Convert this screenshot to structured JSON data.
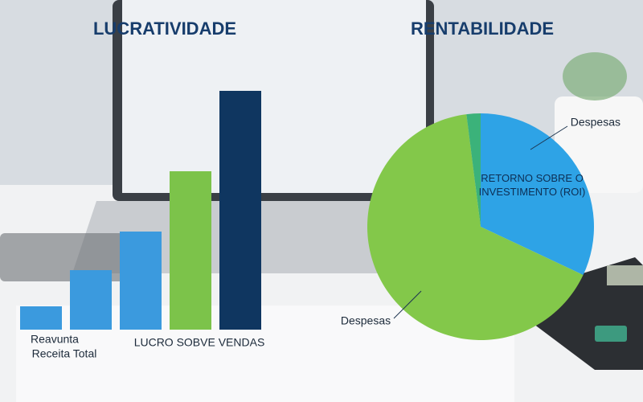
{
  "chart_data": [
    {
      "type": "bar",
      "title": "LUCRATIVIDADE",
      "categories": [
        null,
        null,
        null,
        null,
        null
      ],
      "values": [
        29,
        74,
        122,
        197,
        297
      ],
      "colors": [
        "#3b9ade",
        "#3b9ade",
        "#3b9ade",
        "#7cc34a",
        "#0f3660"
      ],
      "annotations": [
        "Reavunta",
        "Receita Total",
        "LUCRO SOBVE VENDAS"
      ]
    },
    {
      "type": "pie",
      "title": "RENTABILIDADE",
      "categories": [
        "RETORNO SOBRE O INVESTIMENTO (ROI)",
        "Despesas",
        null
      ],
      "values": [
        32,
        66,
        2
      ],
      "colors": [
        "#2ea3e6",
        "#83c84a",
        "#3bb27a"
      ],
      "annotations": [
        "Despesas"
      ]
    }
  ]
}
